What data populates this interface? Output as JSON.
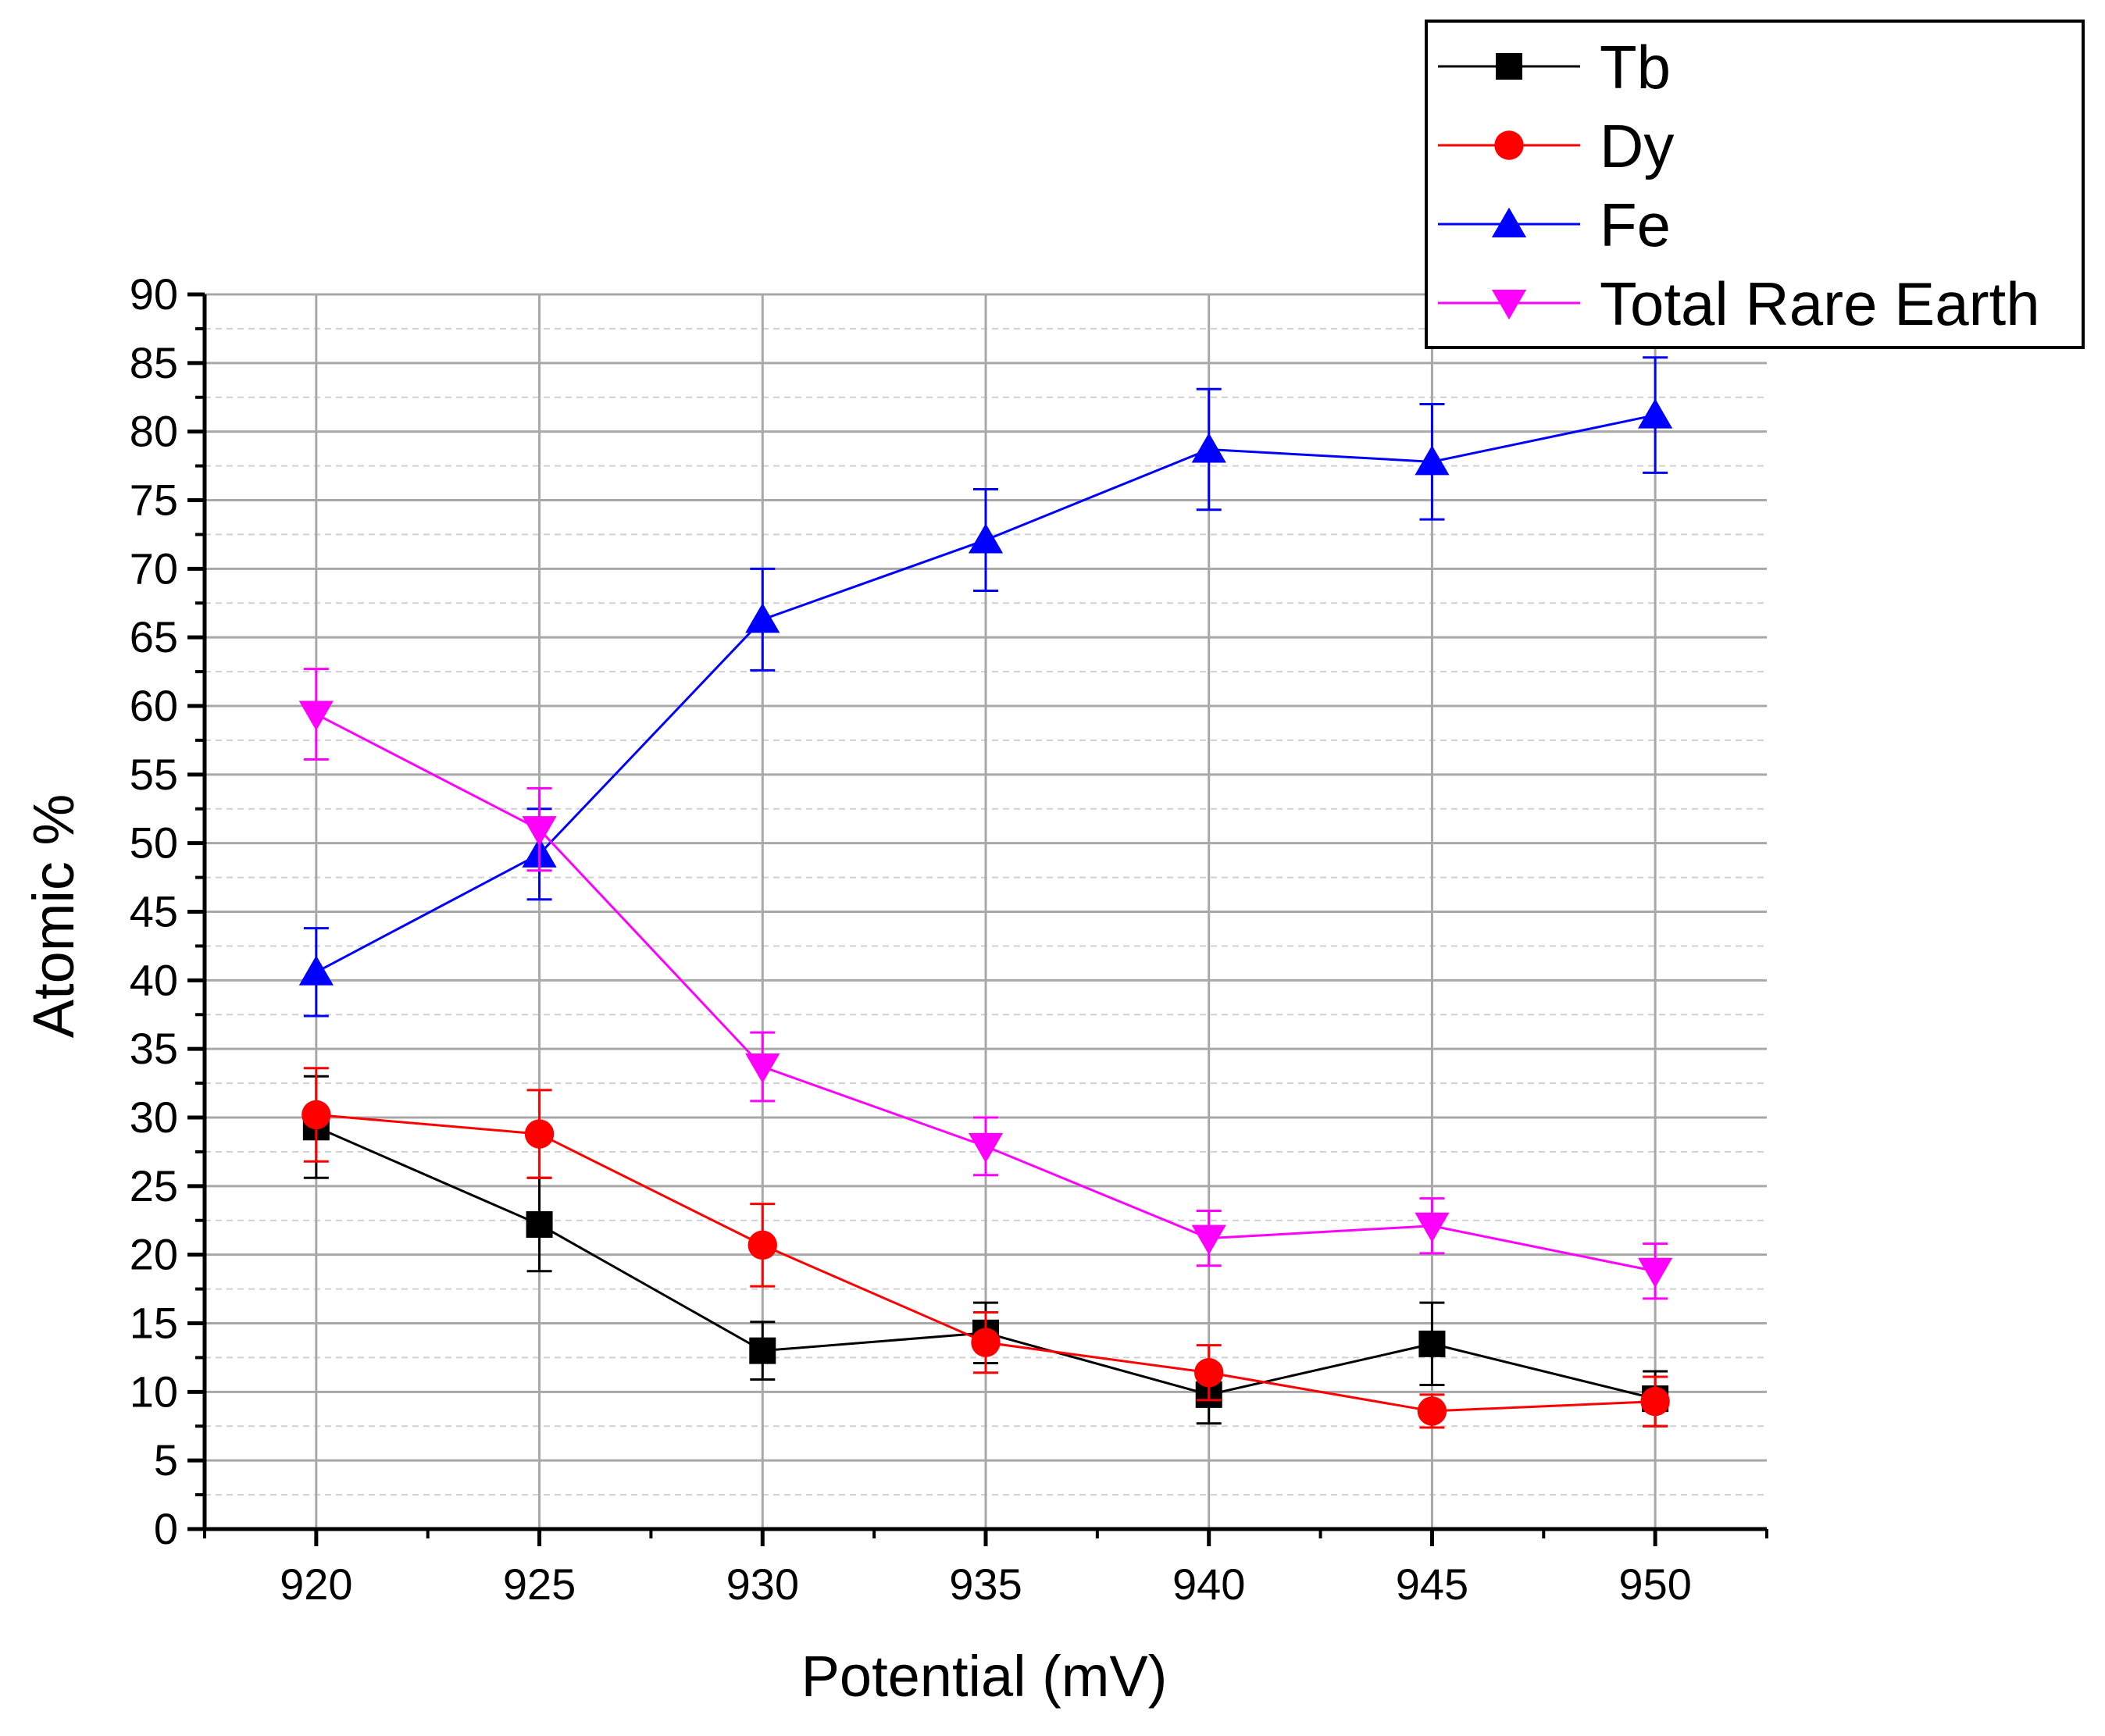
{
  "chart_data": {
    "type": "line",
    "title": "",
    "xlabel": "Potential (mV)",
    "ylabel": "Atomic %",
    "x": [
      920,
      925,
      930,
      935,
      940,
      945,
      950
    ],
    "x_tick_labels": [
      "920",
      "925",
      "930",
      "935",
      "940",
      "945",
      "950"
    ],
    "y_tick_labels": [
      "0",
      "5",
      "10",
      "15",
      "20",
      "25",
      "30",
      "35",
      "40",
      "45",
      "50",
      "55",
      "60",
      "65",
      "70",
      "75",
      "80",
      "85",
      "90"
    ],
    "xlim": [
      917.5,
      952.5
    ],
    "ylim": [
      0,
      90
    ],
    "grid": true,
    "legend_position": "top-right",
    "series": [
      {
        "name": "Tb",
        "color": "#000000",
        "marker": "square",
        "values": [
          29.3,
          22.2,
          13.0,
          14.3,
          9.8,
          13.5,
          9.5
        ],
        "errors": [
          3.7,
          3.4,
          2.1,
          2.2,
          2.1,
          3.0,
          2.0
        ]
      },
      {
        "name": "Dy",
        "color": "#ff0000",
        "marker": "circle",
        "values": [
          30.2,
          28.8,
          20.7,
          13.6,
          11.4,
          8.6,
          9.3
        ],
        "errors": [
          3.4,
          3.2,
          3.0,
          2.2,
          2.0,
          1.2,
          1.8
        ]
      },
      {
        "name": "Fe",
        "color": "#0000ff",
        "marker": "triangle-up",
        "values": [
          40.6,
          49.2,
          66.3,
          72.1,
          78.7,
          77.8,
          81.2
        ],
        "errors": [
          3.2,
          3.3,
          3.7,
          3.7,
          4.4,
          4.2,
          4.2
        ]
      },
      {
        "name": "Total Rare Earth",
        "color": "#ff00ff",
        "marker": "triangle-down",
        "values": [
          59.4,
          51.0,
          33.7,
          27.9,
          21.2,
          22.1,
          18.8
        ],
        "errors": [
          3.3,
          3.0,
          2.5,
          2.1,
          2.0,
          2.0,
          2.0
        ]
      }
    ]
  }
}
